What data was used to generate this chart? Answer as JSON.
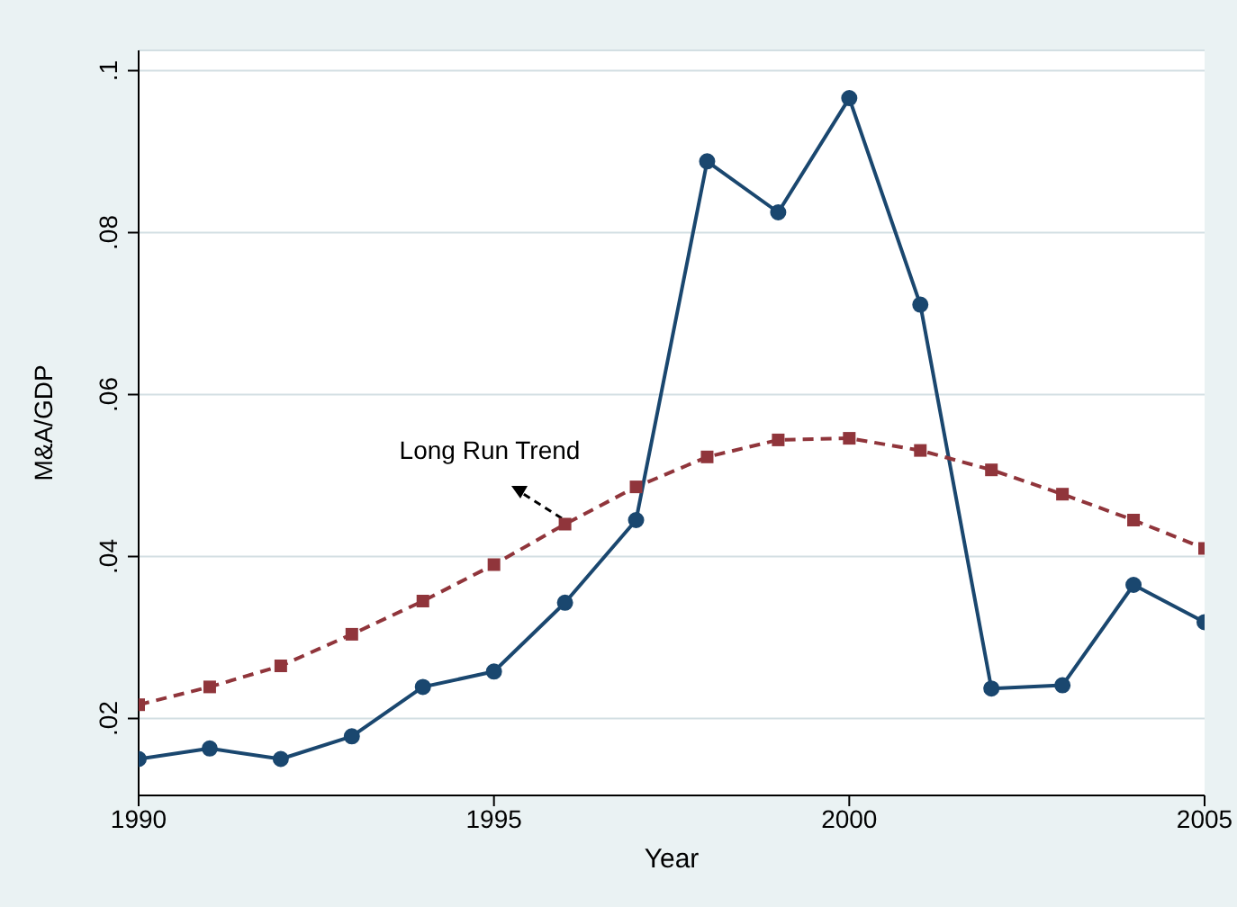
{
  "chart_data": {
    "type": "line",
    "xlabel": "Year",
    "ylabel": "M&A/GDP",
    "x": [
      1990,
      1991,
      1992,
      1993,
      1994,
      1995,
      1996,
      1997,
      1998,
      1999,
      2000,
      2001,
      2002,
      2003,
      2004,
      2005
    ],
    "series": [
      {
        "color": "#1a476f",
        "marker": "circle",
        "line_style": "solid",
        "values": [
          0.015,
          0.0163,
          0.015,
          0.0178,
          0.0239,
          0.0258,
          0.0343,
          0.0445,
          0.0888,
          0.0825,
          0.0966,
          0.0711,
          0.0237,
          0.0241,
          0.0365,
          0.0319
        ]
      },
      {
        "color": "#90353b",
        "marker": "square",
        "line_style": "dashed",
        "values": [
          0.0217,
          0.0239,
          0.0265,
          0.0304,
          0.0345,
          0.039,
          0.044,
          0.0486,
          0.0523,
          0.0544,
          0.0546,
          0.0531,
          0.0507,
          0.0477,
          0.0445,
          0.041
        ]
      }
    ],
    "annotations": [
      "Long Run Trend"
    ],
    "xlim": [
      1990,
      2005
    ],
    "xticks": [
      1990,
      1995,
      2000,
      2005
    ],
    "ylim": [
      0.0105,
      0.1025
    ],
    "yticks": [
      {
        "value": 0.02,
        "label": ".02"
      },
      {
        "value": 0.04,
        "label": ".04"
      },
      {
        "value": 0.06,
        "label": ".06"
      },
      {
        "value": 0.08,
        "label": ".08"
      },
      {
        "value": 0.1,
        "label": ".1"
      }
    ],
    "grid": "y"
  }
}
